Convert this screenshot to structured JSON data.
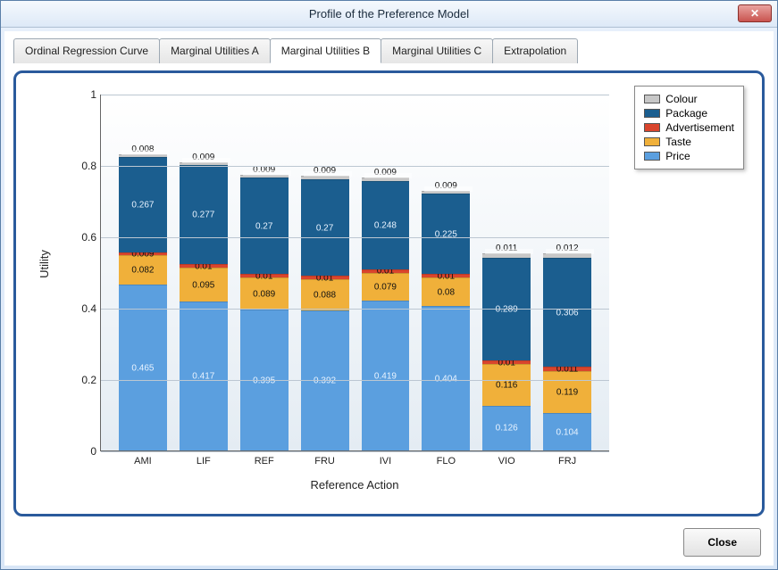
{
  "window": {
    "title": "Profile of the Preference Model",
    "close_symbol": "✕"
  },
  "tabs": [
    {
      "label": "Ordinal Regression Curve",
      "active": false
    },
    {
      "label": "Marginal Utilities A",
      "active": false
    },
    {
      "label": "Marginal Utilities B",
      "active": true
    },
    {
      "label": "Marginal Utilities C",
      "active": false
    },
    {
      "label": "Extrapolation",
      "active": false
    }
  ],
  "chart": {
    "type": "stacked-bar",
    "ylabel": "Utility",
    "xlabel": "Reference Action",
    "ylim": [
      0,
      1
    ],
    "yticks": [
      0,
      0.2,
      0.4,
      0.6,
      0.8,
      1
    ],
    "background_color": "#eef3f8",
    "grid_color": "#bcc7d2",
    "series": [
      {
        "name": "Price",
        "color": "#5b9fdf"
      },
      {
        "name": "Taste",
        "color": "#f0b03a"
      },
      {
        "name": "Advertisement",
        "color": "#d9452d"
      },
      {
        "name": "Package",
        "color": "#1b5e8f"
      },
      {
        "name": "Colour",
        "color": "#c7c7c7"
      }
    ],
    "legend_order": [
      "Colour",
      "Package",
      "Advertisement",
      "Taste",
      "Price"
    ],
    "categories": [
      "AMI",
      "LIF",
      "REF",
      "FRU",
      "IVI",
      "FLO",
      "VIO",
      "FRJ"
    ],
    "data": {
      "AMI": {
        "Price": 0.465,
        "Taste": 0.082,
        "Advertisement": 0.009,
        "Package": 0.267,
        "Colour": 0.008
      },
      "LIF": {
        "Price": 0.417,
        "Taste": 0.095,
        "Advertisement": 0.01,
        "Package": 0.277,
        "Colour": 0.009
      },
      "REF": {
        "Price": 0.395,
        "Taste": 0.089,
        "Advertisement": 0.01,
        "Package": 0.27,
        "Colour": 0.009
      },
      "FRU": {
        "Price": 0.392,
        "Taste": 0.088,
        "Advertisement": 0.01,
        "Package": 0.27,
        "Colour": 0.009
      },
      "IVI": {
        "Price": 0.419,
        "Taste": 0.079,
        "Advertisement": 0.01,
        "Package": 0.248,
        "Colour": 0.009
      },
      "FLO": {
        "Price": 0.404,
        "Taste": 0.08,
        "Advertisement": 0.01,
        "Package": 0.225,
        "Colour": 0.009
      },
      "VIO": {
        "Price": 0.126,
        "Taste": 0.116,
        "Advertisement": 0.01,
        "Package": 0.289,
        "Colour": 0.011
      },
      "FRJ": {
        "Price": 0.104,
        "Taste": 0.119,
        "Advertisement": 0.011,
        "Package": 0.306,
        "Colour": 0.012
      }
    }
  },
  "footer": {
    "close_btn": "Close"
  }
}
